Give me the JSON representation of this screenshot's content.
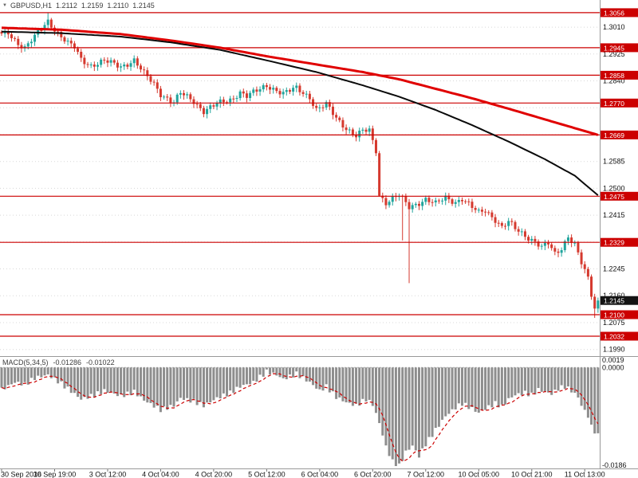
{
  "header": {
    "dropdown_icon": "▼",
    "symbol": "GBPUSD,H1",
    "open": "1.2112",
    "high": "1.2159",
    "low": "1.2110",
    "close": "1.2145"
  },
  "colors": {
    "background": "#ffffff",
    "bull": "#20a49c",
    "bear": "#d5392e",
    "grid": "#d8d8d8",
    "separator": "#999999",
    "axis_text": "#111111",
    "bid_badge": "#141414"
  },
  "chart_data": {
    "type": "candlestick",
    "title": "GBPUSD,H1",
    "ylim": [
      1.1969,
      1.3096
    ],
    "grid": "horizontal-dotted",
    "price_axis": {
      "tick_labels": [
        "1.3010",
        "1.2925",
        "1.2840",
        "1.2755",
        "1.2670",
        "1.2585",
        "1.2500",
        "1.2415",
        "1.2330",
        "1.2245",
        "1.2160",
        "1.2075",
        "1.1990"
      ],
      "bid_label": "1.2145"
    },
    "levels": {
      "style": "horizontal-support-resistance-lines",
      "color": "#cc0000",
      "values": [
        1.3056,
        1.2945,
        1.2858,
        1.277,
        1.2669,
        1.2475,
        1.2329,
        1.21,
        1.2032
      ]
    },
    "candles": {
      "count": 181,
      "close_anchors": [
        [
          0,
          1.2985
        ],
        [
          2,
          1.2992
        ],
        [
          5,
          1.296
        ],
        [
          7,
          1.2945
        ],
        [
          10,
          1.2978
        ],
        [
          14,
          1.303
        ],
        [
          17,
          1.2992
        ],
        [
          20,
          1.2958
        ],
        [
          22,
          1.2945
        ],
        [
          24,
          1.2908
        ],
        [
          27,
          1.289
        ],
        [
          31,
          1.2902
        ],
        [
          36,
          1.2886
        ],
        [
          40,
          1.2906
        ],
        [
          43,
          1.2862
        ],
        [
          46,
          1.283
        ],
        [
          48,
          1.28
        ],
        [
          52,
          1.2772
        ],
        [
          54,
          1.28
        ],
        [
          58,
          1.2776
        ],
        [
          61,
          1.2746
        ],
        [
          65,
          1.2766
        ],
        [
          69,
          1.278
        ],
        [
          72,
          1.2806
        ],
        [
          74,
          1.2792
        ],
        [
          78,
          1.2812
        ],
        [
          80,
          1.2826
        ],
        [
          83,
          1.2812
        ],
        [
          85,
          1.28
        ],
        [
          89,
          1.2816
        ],
        [
          93,
          1.279
        ],
        [
          95,
          1.275
        ],
        [
          98,
          1.2764
        ],
        [
          101,
          1.2722
        ],
        [
          104,
          1.2692
        ],
        [
          107,
          1.2666
        ],
        [
          109,
          1.268
        ],
        [
          111,
          1.2682
        ],
        [
          112,
          1.2648
        ],
        [
          113,
          1.262
        ],
        [
          114,
          1.248
        ],
        [
          116,
          1.2456
        ],
        [
          118,
          1.2468
        ],
        [
          120,
          1.2476
        ],
        [
          123,
          1.244
        ],
        [
          126,
          1.2456
        ],
        [
          128,
          1.2466
        ],
        [
          131,
          1.245
        ],
        [
          134,
          1.247
        ],
        [
          137,
          1.2458
        ],
        [
          139,
          1.2468
        ],
        [
          142,
          1.2438
        ],
        [
          144,
          1.2422
        ],
        [
          146,
          1.2432
        ],
        [
          149,
          1.2402
        ],
        [
          151,
          1.2376
        ],
        [
          153,
          1.2392
        ],
        [
          155,
          1.2372
        ],
        [
          158,
          1.2352
        ],
        [
          161,
          1.2332
        ],
        [
          163,
          1.2312
        ],
        [
          165,
          1.2324
        ],
        [
          167,
          1.2292
        ],
        [
          169,
          1.2312
        ],
        [
          171,
          1.235
        ],
        [
          173,
          1.2322
        ],
        [
          175,
          1.2262
        ],
        [
          177,
          1.2212
        ],
        [
          178,
          1.2162
        ],
        [
          179,
          1.2122
        ],
        [
          180,
          1.2145
        ]
      ],
      "overrides": [
        {
          "i": 14,
          "h": 1.3056
        },
        {
          "i": 114,
          "l": 1.2474
        },
        {
          "i": 121,
          "l": 1.2335
        },
        {
          "i": 123,
          "l": 1.22
        },
        {
          "i": 179,
          "l": 1.209
        },
        {
          "i": 180,
          "c": 1.2145
        }
      ]
    },
    "moving_averages": [
      {
        "name": "ma-slow-red-line",
        "color": "#e00000",
        "width": 3,
        "anchors": [
          [
            0,
            1.3008
          ],
          [
            18,
            1.3002
          ],
          [
            36,
            1.2988
          ],
          [
            51,
            1.2968
          ],
          [
            66,
            1.2945
          ],
          [
            80,
            1.2918
          ],
          [
            95,
            1.2892
          ],
          [
            109,
            1.2868
          ],
          [
            120,
            1.2845
          ],
          [
            131,
            1.2815
          ],
          [
            142,
            1.2785
          ],
          [
            153,
            1.2752
          ],
          [
            164,
            1.2718
          ],
          [
            180,
            1.2669
          ]
        ]
      },
      {
        "name": "ma-fast-black-line",
        "color": "#0a0a0a",
        "width": 2,
        "anchors": [
          [
            0,
            1.2996
          ],
          [
            18,
            1.2991
          ],
          [
            36,
            1.298
          ],
          [
            51,
            1.2962
          ],
          [
            66,
            1.2938
          ],
          [
            80,
            1.2905
          ],
          [
            95,
            1.2868
          ],
          [
            109,
            1.2826
          ],
          [
            120,
            1.279
          ],
          [
            131,
            1.2748
          ],
          [
            142,
            1.27
          ],
          [
            153,
            1.2648
          ],
          [
            164,
            1.2592
          ],
          [
            173,
            1.254
          ],
          [
            180,
            1.2478
          ]
        ]
      }
    ],
    "time_axis": {
      "labels": [
        "30 Sep 2016",
        "30 Sep 19:00",
        "3 Oct 12:00",
        "4 Oct 04:00",
        "4 Oct 20:00",
        "5 Oct 12:00",
        "6 Oct 04:00",
        "6 Oct 20:00",
        "7 Oct 12:00",
        "10 Oct 05:00",
        "10 Oct 21:00",
        "11 Oct 13:00"
      ]
    },
    "macd": {
      "label": "MACD(5,34,5)",
      "value_main": "-0.01286",
      "value_signal": "-0.01022",
      "axis_labels": [
        "0.0019",
        "0.0000",
        "-0.0186"
      ],
      "ylim": [
        -0.0191,
        0.002
      ],
      "histogram_color": "#8e8e8e",
      "signal_color": "#cc0000",
      "histogram_anchors": [
        [
          0,
          -0.0042
        ],
        [
          4,
          -0.0028
        ],
        [
          7,
          -0.0032
        ],
        [
          10,
          -0.002
        ],
        [
          14,
          -0.0014
        ],
        [
          17,
          -0.0026
        ],
        [
          20,
          -0.004
        ],
        [
          24,
          -0.006
        ],
        [
          28,
          -0.0052
        ],
        [
          31,
          -0.0044
        ],
        [
          36,
          -0.0054
        ],
        [
          40,
          -0.0046
        ],
        [
          43,
          -0.0062
        ],
        [
          48,
          -0.008
        ],
        [
          52,
          -0.0072
        ],
        [
          54,
          -0.0058
        ],
        [
          58,
          -0.0064
        ],
        [
          61,
          -0.0072
        ],
        [
          65,
          -0.0058
        ],
        [
          69,
          -0.0048
        ],
        [
          72,
          -0.0036
        ],
        [
          76,
          -0.0028
        ],
        [
          80,
          -0.0008
        ],
        [
          83,
          -0.0014
        ],
        [
          85,
          -0.0022
        ],
        [
          89,
          -0.0012
        ],
        [
          93,
          -0.0028
        ],
        [
          96,
          -0.0044
        ],
        [
          98,
          -0.0036
        ],
        [
          101,
          -0.0056
        ],
        [
          104,
          -0.0066
        ],
        [
          107,
          -0.0072
        ],
        [
          110,
          -0.006
        ],
        [
          112,
          -0.007
        ],
        [
          114,
          -0.0105
        ],
        [
          116,
          -0.015
        ],
        [
          118,
          -0.0178
        ],
        [
          120,
          -0.0186
        ],
        [
          122,
          -0.016
        ],
        [
          124,
          -0.0148
        ],
        [
          126,
          -0.0168
        ],
        [
          128,
          -0.0145
        ],
        [
          131,
          -0.0118
        ],
        [
          134,
          -0.0092
        ],
        [
          137,
          -0.0076
        ],
        [
          139,
          -0.0068
        ],
        [
          142,
          -0.0078
        ],
        [
          144,
          -0.0086
        ],
        [
          146,
          -0.0078
        ],
        [
          149,
          -0.0068
        ],
        [
          151,
          -0.0074
        ],
        [
          153,
          -0.006
        ],
        [
          155,
          -0.0052
        ],
        [
          158,
          -0.0048
        ],
        [
          160,
          -0.0052
        ],
        [
          162,
          -0.0042
        ],
        [
          164,
          -0.0046
        ],
        [
          166,
          -0.005
        ],
        [
          168,
          -0.004
        ],
        [
          170,
          -0.0036
        ],
        [
          172,
          -0.0044
        ],
        [
          174,
          -0.0056
        ],
        [
          175,
          -0.0072
        ],
        [
          177,
          -0.0092
        ],
        [
          178,
          -0.0112
        ],
        [
          180,
          -0.0129
        ]
      ]
    }
  }
}
